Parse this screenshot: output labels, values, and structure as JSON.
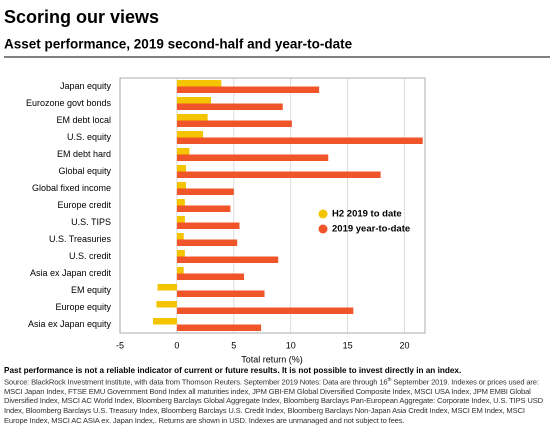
{
  "chart_data": {
    "type": "hbar",
    "title": "Scoring our views",
    "subtitle": "Asset performance, 2019 second-half and year-to-date",
    "categories": [
      "Japan equity",
      "Eurozone govt bonds",
      "EM debt local",
      "U.S. equity",
      "EM debt hard",
      "Global equity",
      "Global fixed income",
      "Europe credit",
      "U.S. TIPS",
      "U.S. Treasuries",
      "U.S. credit",
      "Asia ex Japan credit",
      "EM equity",
      "Europe equity",
      "Asia ex Japan equity"
    ],
    "series": [
      {
        "name": "H2 2019 to date",
        "color": "#f5c400",
        "values": [
          3.9,
          3.0,
          2.7,
          2.3,
          1.1,
          0.8,
          0.8,
          0.7,
          0.7,
          0.6,
          0.7,
          0.6,
          -1.7,
          -1.8,
          -2.1
        ]
      },
      {
        "name": "2019 year-to-date",
        "color": "#f0552a",
        "values": [
          12.5,
          9.3,
          10.1,
          21.6,
          13.3,
          17.9,
          5.0,
          4.7,
          5.5,
          5.3,
          8.9,
          5.9,
          7.7,
          15.5,
          7.4
        ]
      }
    ],
    "xlim": [
      -5,
      21.8
    ],
    "xticks": [
      -5,
      0,
      5,
      10,
      15,
      20
    ],
    "grid": true,
    "legend": "right",
    "xlabel": "Total return (%)",
    "disclaimer": "Past performance is not a reliable indicator of current or future results. It is not possible to invest directly in an index.",
    "source_pre": "Source: BlackRock Investment Institute, with data from Thomson Reuters. September 2019 Notes: Data are through 16",
    "source_sup": "th",
    "source_post": " September 2019. Indexes or prices used are: MSCI Japan Index, FTSE EMU Government Bond Index all maturities index, JPM GBI-EM Global Diversified Composite Index, MSCI USA Index, JPM EMBI Global Diversified Index, MSCI AC World Index, Bloomberg Barclays Global Aggregate Index, Bloomberg Barclays Pan-European Aggregate: Corporate Index, U.S. TIPS USD Index, Bloomberg Barclays U.S. Treasury Index, Bloomberg Barclays U.S. Credit Index, Bloomberg Barclays Non-Japan Asia Credit Index, MSCI EM Index, MSCI Europe Index, MSCI AC ASIA ex. Japan Index,. Returns are shown in USD. Indexes are unmanaged and not subject to fees."
  }
}
